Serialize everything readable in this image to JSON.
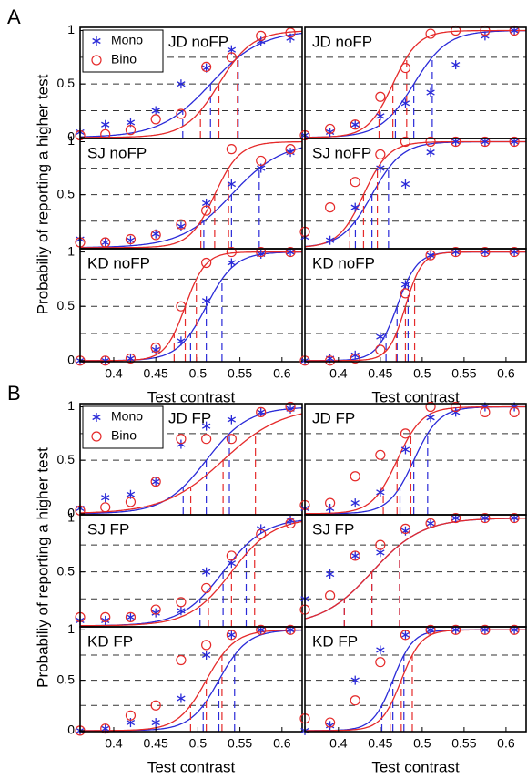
{
  "chart_data": [
    {
      "type": "scatter",
      "panel_label": "A",
      "title": "JD noFP",
      "legend": "upper left",
      "x": [
        0.36,
        0.39,
        0.42,
        0.45,
        0.48,
        0.51,
        0.54,
        0.575,
        0.61
      ],
      "xlim": [
        0.36,
        0.624
      ],
      "ylim": [
        -0.01,
        1.03
      ],
      "yticks": [
        0,
        0.5,
        1
      ],
      "reference_lines": [
        0.25,
        0.5,
        0.75
      ],
      "series": [
        {
          "name": "Mono",
          "color": "#2a2ad8",
          "marker": "star",
          "values": [
            0.05,
            0.12,
            0.14,
            0.25,
            0.5,
            0.65,
            0.82,
            0.9,
            0.93
          ],
          "fit": {
            "mu": 0.515,
            "sigma": 0.03
          }
        },
        {
          "name": "Bino",
          "color": "#e52a2a",
          "marker": "circle",
          "values": [
            0.02,
            0.03,
            0.07,
            0.17,
            0.22,
            0.66,
            0.75,
            0.95,
            0.98
          ],
          "fit": {
            "mu": 0.525,
            "sigma": 0.02
          }
        }
      ]
    },
    {
      "type": "scatter",
      "title": "JD noFP",
      "x": [
        0.36,
        0.39,
        0.42,
        0.45,
        0.48,
        0.51,
        0.54,
        0.575,
        0.61
      ],
      "xlim": [
        0.36,
        0.624
      ],
      "ylim": [
        -0.01,
        1.03
      ],
      "reference_lines": [
        0.25,
        0.5,
        0.75
      ],
      "series": [
        {
          "color": "#2a2ad8",
          "marker": "star",
          "values": [
            0.02,
            0.05,
            0.12,
            0.2,
            0.32,
            0.42,
            0.68,
            0.95,
            1
          ],
          "fit": {
            "mu": 0.49,
            "sigma": 0.02
          }
        },
        {
          "color": "#e52a2a",
          "marker": "circle",
          "values": [
            0.02,
            0.08,
            0.12,
            0.38,
            0.65,
            0.97,
            1,
            1,
            1
          ],
          "fit": {
            "mu": 0.465,
            "sigma": 0.015
          }
        }
      ]
    },
    {
      "type": "scatter",
      "title": "SJ  noFP",
      "ylabel": "Probabiliy of reporting a higher test",
      "x": [
        0.36,
        0.39,
        0.42,
        0.45,
        0.48,
        0.51,
        0.54,
        0.575,
        0.61
      ],
      "xlim": [
        0.36,
        0.624
      ],
      "ylim": [
        -0.01,
        1.03
      ],
      "yticks": [
        0.5,
        1
      ],
      "reference_lines": [
        0.25,
        0.5,
        0.75
      ],
      "series": [
        {
          "color": "#2a2ad8",
          "marker": "star",
          "values": [
            0.08,
            0.05,
            0.07,
            0.13,
            0.2,
            0.42,
            0.6,
            0.75,
            0.9
          ],
          "fit": {
            "mu": 0.54,
            "sigma": 0.03
          }
        },
        {
          "color": "#e52a2a",
          "marker": "circle",
          "values": [
            0.05,
            0.05,
            0.08,
            0.12,
            0.22,
            0.35,
            0.93,
            0.82,
            0.93
          ],
          "fit": {
            "mu": 0.52,
            "sigma": 0.015
          }
        }
      ]
    },
    {
      "type": "scatter",
      "title": "SJ  noFP",
      "x": [
        0.36,
        0.39,
        0.42,
        0.45,
        0.48,
        0.51,
        0.54,
        0.575,
        0.61
      ],
      "xlim": [
        0.36,
        0.624
      ],
      "ylim": [
        -0.01,
        1.03
      ],
      "reference_lines": [
        0.25,
        0.5,
        0.75
      ],
      "series": [
        {
          "color": "#2a2ad8",
          "marker": "star",
          "values": [
            0.1,
            0.07,
            0.38,
            0.75,
            0.6,
            0.9,
            1,
            1,
            1
          ],
          "fit": {
            "mu": 0.44,
            "sigma": 0.018
          }
        },
        {
          "color": "#e52a2a",
          "marker": "circle",
          "values": [
            0.15,
            0.38,
            0.62,
            0.88,
            1,
            1,
            1,
            1,
            1
          ],
          "fit": {
            "mu": 0.43,
            "sigma": 0.015
          }
        }
      ]
    },
    {
      "type": "scatter",
      "title": "KD  noFP",
      "xlabel": "Test contrast",
      "x": [
        0.36,
        0.39,
        0.42,
        0.45,
        0.48,
        0.51,
        0.54,
        0.575,
        0.61
      ],
      "xlim": [
        0.36,
        0.624
      ],
      "xticks": [
        0.4,
        0.45,
        0.5,
        0.55,
        0.6
      ],
      "ylim": [
        -0.01,
        1.03
      ],
      "yticks": [
        0,
        0.5,
        1
      ],
      "reference_lines": [
        0.25,
        0.5,
        0.75
      ],
      "series": [
        {
          "color": "#2a2ad8",
          "marker": "star",
          "values": [
            0,
            0,
            0.02,
            0.1,
            0.18,
            0.55,
            0.9,
            0.98,
            1
          ],
          "fit": {
            "mu": 0.51,
            "sigma": 0.017
          }
        },
        {
          "color": "#e52a2a",
          "marker": "circle",
          "values": [
            0,
            0,
            0.02,
            0.12,
            0.5,
            0.9,
            1,
            1,
            1
          ],
          "fit": {
            "mu": 0.485,
            "sigma": 0.012
          }
        }
      ]
    },
    {
      "type": "scatter",
      "title": "KD  noFP",
      "xlabel": "Test contrast",
      "x": [
        0.36,
        0.39,
        0.42,
        0.45,
        0.48,
        0.51,
        0.54,
        0.575,
        0.61
      ],
      "xlim": [
        0.36,
        0.624
      ],
      "xticks": [
        0.4,
        0.45,
        0.5,
        0.55,
        0.6
      ],
      "ylim": [
        -0.01,
        1.03
      ],
      "reference_lines": [
        0.25,
        0.5,
        0.75
      ],
      "series": [
        {
          "color": "#2a2ad8",
          "marker": "star",
          "values": [
            0,
            0.02,
            0.05,
            0.22,
            0.7,
            0.97,
            1,
            1,
            1
          ],
          "fit": {
            "mu": 0.47,
            "sigma": 0.012
          }
        },
        {
          "color": "#e52a2a",
          "marker": "circle",
          "values": [
            0,
            0,
            0.02,
            0.1,
            0.62,
            0.97,
            1,
            1,
            1
          ],
          "fit": {
            "mu": 0.48,
            "sigma": 0.01
          }
        }
      ]
    },
    {
      "type": "scatter",
      "panel_label": "B",
      "title": "JD  FP",
      "legend": "upper left",
      "x": [
        0.36,
        0.39,
        0.42,
        0.45,
        0.48,
        0.51,
        0.54,
        0.575,
        0.61
      ],
      "xlim": [
        0.36,
        0.624
      ],
      "ylim": [
        -0.01,
        1.03
      ],
      "yticks": [
        0,
        0.5,
        1
      ],
      "reference_lines": [
        0.25,
        0.5,
        0.75
      ],
      "series": [
        {
          "name": "Mono",
          "color": "#2a2ad8",
          "marker": "star",
          "values": [
            0.05,
            0.15,
            0.18,
            0.3,
            0.65,
            0.82,
            0.88,
            0.95,
            0.98
          ],
          "fit": {
            "mu": 0.51,
            "sigma": 0.025
          }
        },
        {
          "name": "Bino",
          "color": "#e52a2a",
          "marker": "circle",
          "values": [
            0.03,
            0.06,
            0.11,
            0.3,
            0.7,
            0.7,
            0.7,
            0.95,
            1
          ],
          "fit": {
            "mu": 0.53,
            "sigma": 0.035
          }
        }
      ]
    },
    {
      "type": "scatter",
      "title": "JD  FP",
      "x": [
        0.36,
        0.39,
        0.42,
        0.45,
        0.48,
        0.51,
        0.54,
        0.575,
        0.61
      ],
      "xlim": [
        0.36,
        0.624
      ],
      "ylim": [
        -0.01,
        1.03
      ],
      "reference_lines": [
        0.25,
        0.5,
        0.75
      ],
      "series": [
        {
          "color": "#2a2ad8",
          "marker": "star",
          "values": [
            0.05,
            0.05,
            0.1,
            0.2,
            0.6,
            0.9,
            0.95,
            1,
            1
          ],
          "fit": {
            "mu": 0.49,
            "sigma": 0.015
          }
        },
        {
          "color": "#e52a2a",
          "marker": "circle",
          "values": [
            0.08,
            0.1,
            0.35,
            0.55,
            0.75,
            1,
            1,
            0.95,
            0.95
          ],
          "fit": {
            "mu": 0.47,
            "sigma": 0.015
          }
        }
      ]
    },
    {
      "type": "scatter",
      "title": "SJ  FP",
      "ylabel": "Probabiliy of reporting a higher test",
      "x": [
        0.36,
        0.39,
        0.42,
        0.45,
        0.48,
        0.51,
        0.54,
        0.575,
        0.61
      ],
      "xlim": [
        0.36,
        0.624
      ],
      "ylim": [
        -0.01,
        1.03
      ],
      "yticks": [
        0.5,
        1
      ],
      "reference_lines": [
        0.25,
        0.5,
        0.75
      ],
      "series": [
        {
          "color": "#2a2ad8",
          "marker": "star",
          "values": [
            0.05,
            0.05,
            0.08,
            0.12,
            0.14,
            0.5,
            0.58,
            0.9,
            0.98
          ],
          "fit": {
            "mu": 0.53,
            "sigma": 0.025
          }
        },
        {
          "color": "#e52a2a",
          "marker": "circle",
          "values": [
            0.08,
            0.08,
            0.08,
            0.15,
            0.22,
            0.35,
            0.65,
            0.85,
            0.95
          ],
          "fit": {
            "mu": 0.54,
            "sigma": 0.025
          }
        }
      ]
    },
    {
      "type": "scatter",
      "title": "SJ  FP",
      "x": [
        0.36,
        0.39,
        0.42,
        0.45,
        0.48,
        0.51,
        0.54,
        0.575,
        0.61
      ],
      "xlim": [
        0.36,
        0.624
      ],
      "ylim": [
        -0.01,
        1.03
      ],
      "reference_lines": [
        0.25,
        0.5,
        0.75
      ],
      "series": [
        {
          "color": "#2a2ad8",
          "marker": "star",
          "values": [
            0.25,
            0.48,
            0.65,
            0.68,
            0.88,
            0.95,
            1,
            1,
            1
          ],
          "fit": {
            "mu": 0.44,
            "sigma": 0.03
          }
        },
        {
          "color": "#e52a2a",
          "marker": "circle",
          "values": [
            0.15,
            0.28,
            0.65,
            0.75,
            0.9,
            0.95,
            1,
            1,
            1
          ],
          "fit": {
            "mu": 0.44,
            "sigma": 0.03
          }
        }
      ]
    },
    {
      "type": "scatter",
      "title": "KD  FP",
      "xlabel": "Test contrast",
      "x": [
        0.36,
        0.39,
        0.42,
        0.45,
        0.48,
        0.51,
        0.54,
        0.575,
        0.61
      ],
      "xlim": [
        0.36,
        0.624
      ],
      "xticks": [
        0.4,
        0.45,
        0.5,
        0.55,
        0.6
      ],
      "ylim": [
        -0.01,
        1.03
      ],
      "yticks": [
        0,
        0.5,
        1
      ],
      "reference_lines": [
        0.25,
        0.5,
        0.75
      ],
      "series": [
        {
          "color": "#2a2ad8",
          "marker": "star",
          "values": [
            0,
            0.02,
            0.08,
            0.08,
            0.32,
            0.75,
            0.95,
            1,
            1
          ],
          "fit": {
            "mu": 0.525,
            "sigma": 0.017
          }
        },
        {
          "color": "#e52a2a",
          "marker": "circle",
          "values": [
            0,
            0.02,
            0.15,
            0.25,
            0.7,
            0.85,
            0.95,
            1,
            1
          ],
          "fit": {
            "mu": 0.51,
            "sigma": 0.017
          }
        }
      ]
    },
    {
      "type": "scatter",
      "title": "KD  FP",
      "xlabel": "Test contrast",
      "x": [
        0.36,
        0.39,
        0.42,
        0.45,
        0.48,
        0.51,
        0.54,
        0.575,
        0.61
      ],
      "xlim": [
        0.36,
        0.624
      ],
      "xticks": [
        0.4,
        0.45,
        0.5,
        0.55,
        0.6
      ],
      "ylim": [
        -0.01,
        1.03
      ],
      "reference_lines": [
        0.25,
        0.5,
        0.75
      ],
      "series": [
        {
          "color": "#2a2ad8",
          "marker": "star",
          "values": [
            0,
            0.05,
            0.5,
            0.8,
            0.95,
            1,
            1,
            1,
            1
          ],
          "fit": {
            "mu": 0.465,
            "sigma": 0.012
          }
        },
        {
          "color": "#e52a2a",
          "marker": "circle",
          "values": [
            0.12,
            0.08,
            0.3,
            0.68,
            0.95,
            1,
            1,
            1,
            1
          ],
          "fit": {
            "mu": 0.475,
            "sigma": 0.012
          }
        }
      ]
    }
  ]
}
